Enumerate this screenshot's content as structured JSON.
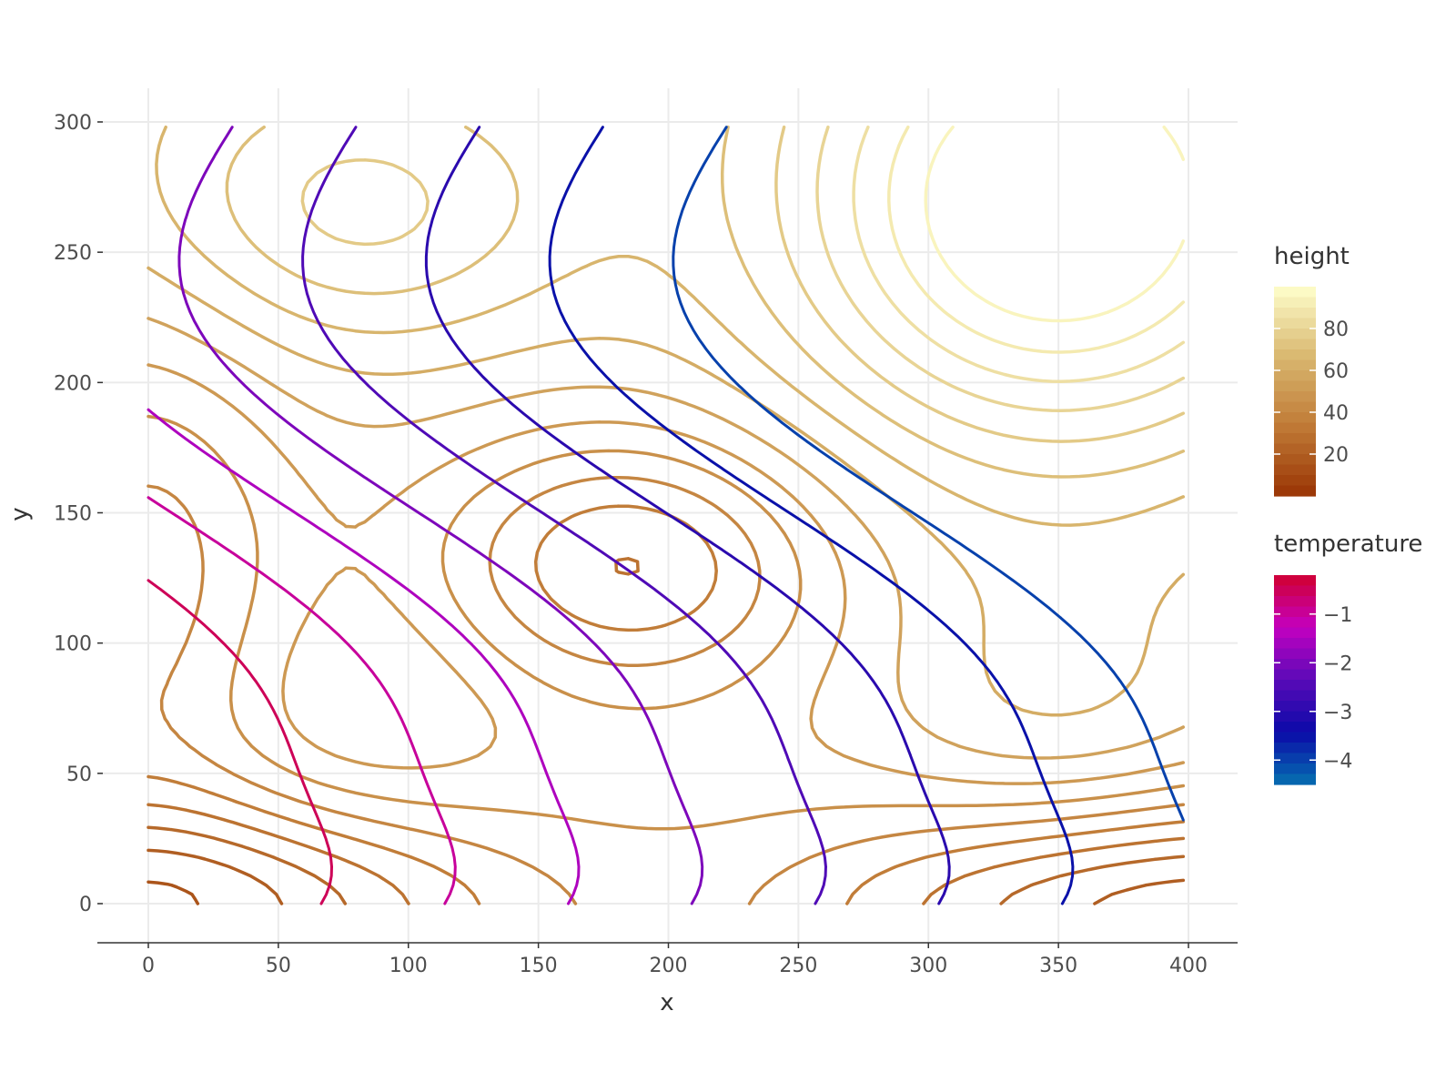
{
  "chart_data": {
    "type": "contour",
    "xlabel": "x",
    "ylabel": "y",
    "xlim": [
      -20,
      420
    ],
    "ylim": [
      -15,
      315
    ],
    "x_ticks": [
      "0",
      "50",
      "100",
      "150",
      "200",
      "250",
      "300",
      "350",
      "400"
    ],
    "y_ticks": [
      "0",
      "50",
      "100",
      "150",
      "200",
      "250",
      "300"
    ],
    "grid": true,
    "legend_placement": "right",
    "layers": [
      {
        "name": "height",
        "colorscale": [
          "#993404",
          "#c07a36",
          "#d9b870",
          "#ffffcc"
        ],
        "range": [
          0,
          100
        ],
        "legend_ticks": [
          20,
          40,
          60,
          80
        ],
        "contour_levels": [
          5,
          10,
          15,
          20,
          25,
          30,
          35,
          40,
          45,
          50,
          55,
          60,
          65,
          70,
          75,
          80,
          85,
          90,
          95
        ]
      },
      {
        "name": "temperature",
        "colorscale": [
          "#0570b0",
          "#0a0aa8",
          "#5a0ab8",
          "#c400c0",
          "#d0002f"
        ],
        "range": [
          -4.5,
          -0.2
        ],
        "legend_ticks": [
          -1,
          -2,
          -3,
          -4
        ],
        "legend_tick_labels": [
          "−1",
          "−2",
          "−3",
          "−4"
        ],
        "contour_levels": [
          -4,
          -3.5,
          -3,
          -2.5,
          -2,
          -1.5,
          -1,
          -0.5
        ]
      }
    ]
  }
}
